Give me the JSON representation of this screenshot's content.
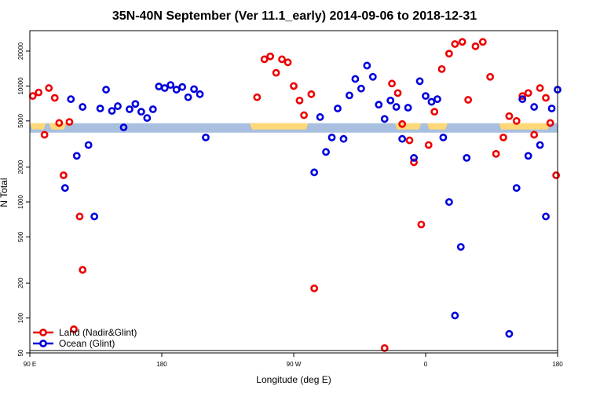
{
  "chart_data": {
    "type": "scatter",
    "title": "35N-40N September (Ver 11.1_early)   2014-09-06 to 2018-12-31",
    "xlabel": "Longitude (deg E)",
    "ylabel": "N Total",
    "xlim": [
      90,
      450
    ],
    "ylim_log": [
      50,
      30000
    ],
    "y_scale": "log",
    "xticks": [
      {
        "value": 90,
        "label": "90 E"
      },
      {
        "value": 180,
        "label": "180"
      },
      {
        "value": 270,
        "label": "90 W"
      },
      {
        "value": 360,
        "label": "0"
      },
      {
        "value": 450,
        "label": "180"
      }
    ],
    "yticks": [
      50,
      100,
      200,
      500,
      1000,
      2000,
      5000,
      10000,
      20000
    ],
    "legend": {
      "position": "bottom-left",
      "entries": [
        {
          "name": "Land (Nadir&Glint)",
          "color": "#ee0000"
        },
        {
          "name": "Ocean (Glint)",
          "color": "#0000dd"
        }
      ]
    },
    "land_mask": {
      "y_center": 4350,
      "land_color": "#ffd877",
      "ocean_color": "#a9bfdf",
      "land_segments": [
        [
          90,
          101
        ],
        [
          104,
          112
        ],
        [
          103,
          115
        ],
        [
          240,
          280
        ],
        [
          339,
          357
        ],
        [
          361,
          375
        ],
        [
          410,
          445
        ]
      ]
    },
    "series": [
      {
        "name": "Land (Nadir&Glint)",
        "color": "#ee0000",
        "points": [
          [
            92,
            8200
          ],
          [
            96,
            8800
          ],
          [
            100,
            3800
          ],
          [
            103,
            9600
          ],
          [
            107,
            7900
          ],
          [
            110,
            4800
          ],
          [
            113,
            1700
          ],
          [
            117,
            4900
          ],
          [
            120,
            80
          ],
          [
            124,
            750
          ],
          [
            126,
            260
          ],
          [
            245,
            8000
          ],
          [
            250,
            17000
          ],
          [
            254,
            18000
          ],
          [
            258,
            13000
          ],
          [
            262,
            17000
          ],
          [
            266,
            16000
          ],
          [
            270,
            10000
          ],
          [
            274,
            7500
          ],
          [
            277,
            5600
          ],
          [
            282,
            8500
          ],
          [
            284,
            180
          ],
          [
            332,
            55
          ],
          [
            337,
            10500
          ],
          [
            341,
            8700
          ],
          [
            344,
            4700
          ],
          [
            349,
            3400
          ],
          [
            352,
            2200
          ],
          [
            357,
            640
          ],
          [
            362,
            3100
          ],
          [
            366,
            6000
          ],
          [
            371,
            14000
          ],
          [
            376,
            19000
          ],
          [
            380,
            23000
          ],
          [
            385,
            24000
          ],
          [
            389,
            7600
          ],
          [
            394,
            22000
          ],
          [
            399,
            24000
          ],
          [
            404,
            12000
          ],
          [
            408,
            2600
          ],
          [
            413,
            3600
          ],
          [
            417,
            5500
          ],
          [
            422,
            5000
          ],
          [
            426,
            8200
          ],
          [
            430,
            8700
          ],
          [
            434,
            3800
          ],
          [
            438,
            9600
          ],
          [
            442,
            7900
          ],
          [
            445,
            4800
          ],
          [
            449,
            1700
          ]
        ]
      },
      {
        "name": "Ocean (Glint)",
        "color": "#0000dd",
        "points": [
          [
            114,
            1320
          ],
          [
            118,
            7700
          ],
          [
            122,
            2500
          ],
          [
            126,
            6600
          ],
          [
            130,
            3100
          ],
          [
            134,
            750
          ],
          [
            138,
            6400
          ],
          [
            142,
            9300
          ],
          [
            146,
            6100
          ],
          [
            150,
            6700
          ],
          [
            154,
            4400
          ],
          [
            158,
            6300
          ],
          [
            162,
            7000
          ],
          [
            166,
            6000
          ],
          [
            170,
            5300
          ],
          [
            174,
            6300
          ],
          [
            178,
            9900
          ],
          [
            182,
            9600
          ],
          [
            186,
            10200
          ],
          [
            190,
            9300
          ],
          [
            194,
            9800
          ],
          [
            198,
            8000
          ],
          [
            202,
            9400
          ],
          [
            206,
            8500
          ],
          [
            210,
            3600
          ],
          [
            284,
            1800
          ],
          [
            288,
            5400
          ],
          [
            292,
            2700
          ],
          [
            296,
            3600
          ],
          [
            300,
            6400
          ],
          [
            304,
            3500
          ],
          [
            308,
            8300
          ],
          [
            312,
            11500
          ],
          [
            316,
            9500
          ],
          [
            320,
            15000
          ],
          [
            324,
            12000
          ],
          [
            328,
            6900
          ],
          [
            332,
            5200
          ],
          [
            336,
            7500
          ],
          [
            340,
            6600
          ],
          [
            344,
            3500
          ],
          [
            348,
            6500
          ],
          [
            352,
            2400
          ],
          [
            356,
            11000
          ],
          [
            360,
            8200
          ],
          [
            364,
            7300
          ],
          [
            368,
            7700
          ],
          [
            372,
            3600
          ],
          [
            376,
            1000
          ],
          [
            380,
            105
          ],
          [
            384,
            410
          ],
          [
            388,
            2400
          ],
          [
            417,
            73
          ],
          [
            422,
            1320
          ],
          [
            426,
            7700
          ],
          [
            430,
            2500
          ],
          [
            434,
            6600
          ],
          [
            438,
            3100
          ],
          [
            442,
            750
          ],
          [
            446,
            6400
          ],
          [
            450,
            9300
          ]
        ]
      }
    ]
  }
}
